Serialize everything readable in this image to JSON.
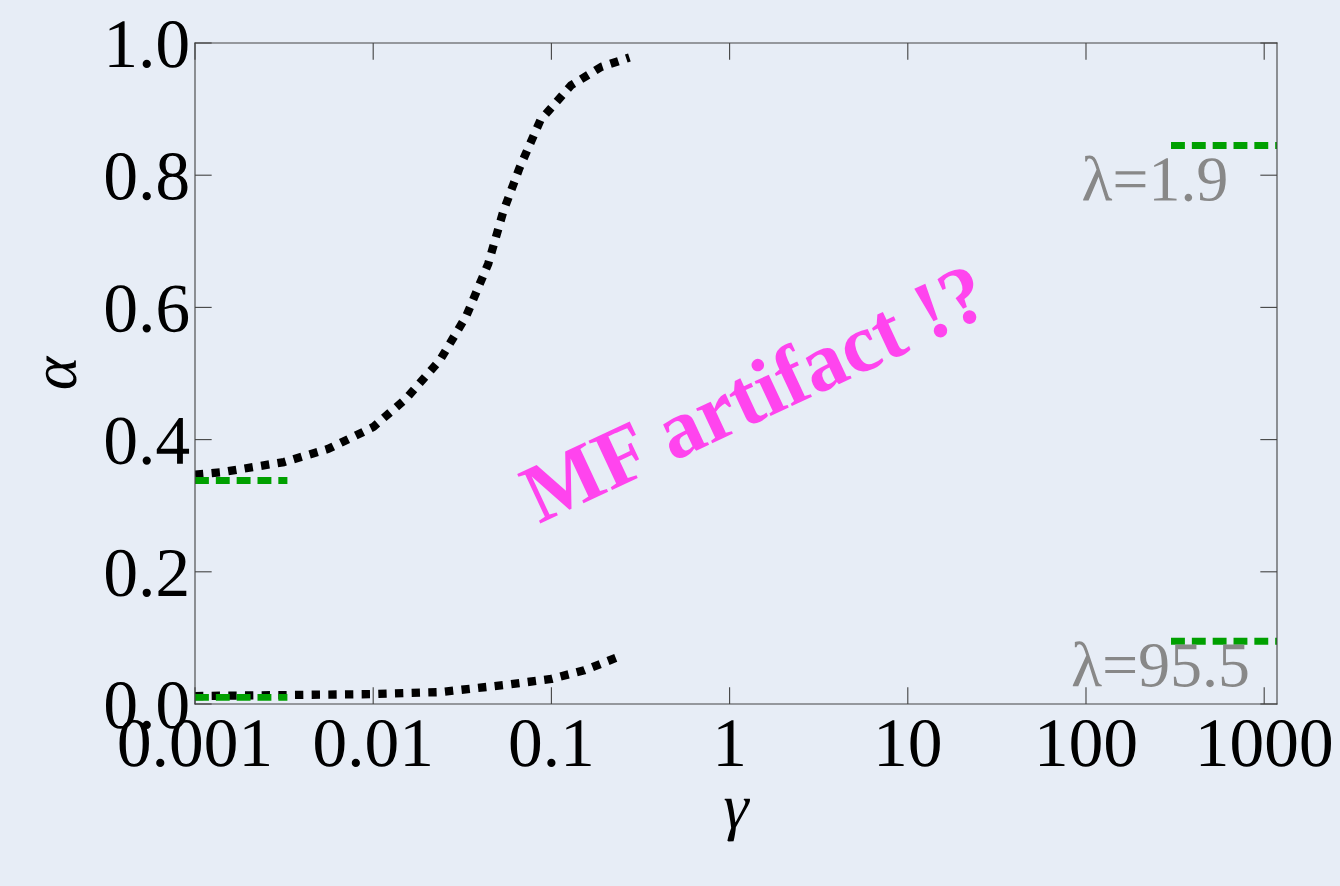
{
  "chart_data": {
    "type": "line",
    "xlabel": "γ",
    "ylabel": "α",
    "log": "x",
    "grid": false,
    "legend": false,
    "xlim": [
      0.001,
      1180
    ],
    "xticks": [
      0.001,
      0.01,
      0.1,
      1,
      10,
      100,
      1000
    ],
    "ylim": [
      0,
      1
    ],
    "yticks": [
      {
        "value": 0,
        "label": "0.0"
      },
      {
        "value": 0.2,
        "label": "0.2"
      },
      {
        "value": 0.4,
        "label": "0.4"
      },
      {
        "value": 0.6,
        "label": "0.6"
      },
      {
        "value": 0.8,
        "label": "0.8"
      },
      {
        "value": 1,
        "label": "1.0"
      }
    ],
    "series": [
      {
        "color": "#000000",
        "line_style": "dotted",
        "x": [
          0.001,
          0.00144,
          0.00316,
          0.0056,
          0.01,
          0.0153,
          0.0238,
          0.0333,
          0.0442,
          0.0537,
          0.066,
          0.0867,
          0.129,
          0.191,
          0.274
        ],
        "values": [
          0.347,
          0.351,
          0.366,
          0.386,
          0.419,
          0.462,
          0.521,
          0.587,
          0.666,
          0.745,
          0.81,
          0.883,
          0.936,
          0.964,
          0.978
        ]
      },
      {
        "color": "#000000",
        "line_style": "dotted",
        "x": [
          0.001,
          0.01,
          0.0238,
          0.0557,
          0.1,
          0.153,
          0.247
        ],
        "values": [
          0.012,
          0.015,
          0.018,
          0.029,
          0.038,
          0.051,
          0.073
        ]
      },
      {
        "color": "#00a000",
        "line_style": "dashed",
        "x": [
          0.001,
          0.0033
        ],
        "values": [
          0.338,
          0.338
        ]
      },
      {
        "color": "#00a000",
        "line_style": "dashed",
        "x": [
          0.001,
          0.0033
        ],
        "values": [
          0.01,
          0.01
        ]
      },
      {
        "color": "#00a000",
        "line_style": "dashed",
        "x": [
          300,
          1180
        ],
        "values": [
          0.845,
          0.845
        ]
      },
      {
        "color": "#00a000",
        "line_style": "dashed",
        "x": [
          300,
          1180
        ],
        "values": [
          0.095,
          0.095
        ]
      }
    ],
    "annotations": [
      "λ=1.9",
      "λ=95.5",
      "MF artifact !?"
    ]
  }
}
